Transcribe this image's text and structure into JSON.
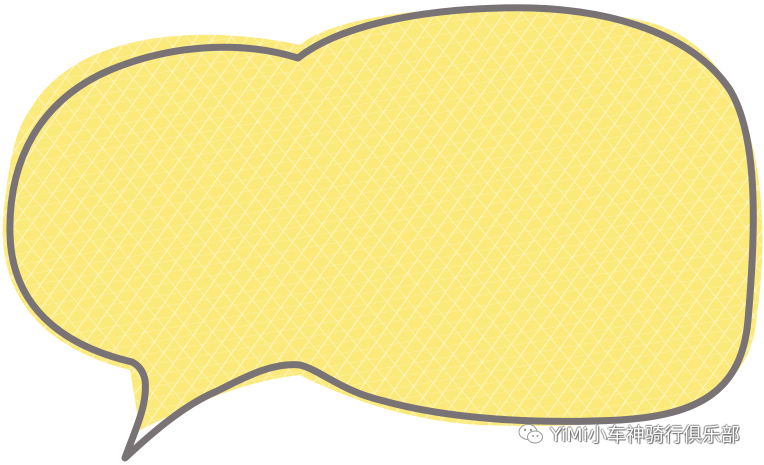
{
  "illustration": {
    "shape": "speech-bubble",
    "fill_color": "#fbea7a",
    "outline_color": "#7a7375"
  },
  "watermark": {
    "icon": "wechat-icon",
    "text": "YiMi小车神骑行俱乐部"
  }
}
